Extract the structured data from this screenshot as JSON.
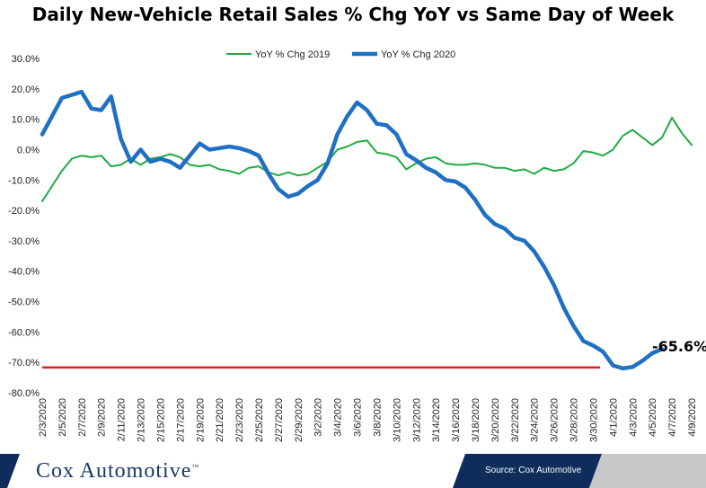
{
  "chart_data": {
    "type": "line",
    "title": "Daily New-Vehicle Retail Sales % Chg YoY vs Same Day of Week",
    "xlabel": "",
    "ylabel": "",
    "ylim": [
      -80,
      30
    ],
    "y_ticks": [
      "30.0%",
      "20.0%",
      "10.0%",
      "0.0%",
      "-10.0%",
      "-20.0%",
      "-30.0%",
      "-40.0%",
      "-50.0%",
      "-60.0%",
      "-70.0%",
      "-80.0%"
    ],
    "x_start": "2/3/2020",
    "x_ticks": [
      "2/3/2020",
      "2/5/2020",
      "2/7/2020",
      "2/9/2020",
      "2/11/2020",
      "2/13/2020",
      "2/15/2020",
      "2/17/2020",
      "2/19/2020",
      "2/21/2020",
      "2/23/2020",
      "2/25/2020",
      "2/27/2020",
      "2/29/2020",
      "3/2/2020",
      "3/4/2020",
      "3/6/2020",
      "3/8/2020",
      "3/10/2020",
      "3/12/2020",
      "3/14/2020",
      "3/16/2020",
      "3/18/2020",
      "3/20/2020",
      "3/22/2020",
      "3/24/2020",
      "3/26/2020",
      "3/28/2020",
      "3/30/2020",
      "4/1/2020",
      "4/3/2020",
      "4/5/2020",
      "4/7/2020",
      "4/9/2020"
    ],
    "legend_position": "top-center",
    "grid": false,
    "series": [
      {
        "name": "YoY % Chg 2019",
        "color": "#22aa44",
        "values": [
          -17,
          -12,
          -7,
          -3,
          -2,
          -2.5,
          -2,
          -5.5,
          -5,
          -3,
          -5,
          -3,
          -2.5,
          -1.5,
          -2.5,
          -5,
          -5.5,
          -5,
          -6.5,
          -7,
          -8,
          -6,
          -5.5,
          -7.5,
          -8.5,
          -7.5,
          -8.5,
          -8,
          -6,
          -4,
          0,
          1,
          2.5,
          3,
          -1,
          -1.5,
          -2.5,
          -6.5,
          -4.5,
          -3,
          -2.5,
          -4.5,
          -5,
          -5,
          -4.5,
          -5,
          -6,
          -6,
          -7,
          -6.5,
          -8,
          -6,
          -7,
          -6.5,
          -4.5,
          -0.5,
          -1,
          -2,
          0,
          4.5,
          6.5,
          4,
          1.5,
          4,
          10.5,
          5.5,
          1.5
        ]
      },
      {
        "name": "YoY % Chg 2020",
        "color": "#1f6fc5",
        "values": [
          5,
          11,
          17,
          18,
          19,
          13.5,
          13,
          17.5,
          3.5,
          -4,
          0,
          -4,
          -3,
          -4,
          -6,
          -2,
          2,
          0,
          0.5,
          1,
          0.5,
          -0.5,
          -2,
          -8,
          -13,
          -15.5,
          -14.5,
          -12,
          -10,
          -4.5,
          5,
          11,
          15.5,
          13,
          8.5,
          8,
          5,
          -1.5,
          -3.5,
          -6,
          -7.5,
          -10,
          -10.5,
          -12.5,
          -16.5,
          -21.5,
          -24.5,
          -26,
          -29,
          -30,
          -33.5,
          -38.5,
          -44.5,
          -52,
          -58,
          -63,
          -64.5,
          -66.5,
          -71,
          -72,
          -71.5,
          -69.5,
          -67,
          -65.6
        ]
      }
    ],
    "reference_line": {
      "value": -71.7,
      "color": "#e02020"
    },
    "end_label": "-65.6%"
  },
  "footer": {
    "brand": "Cox Automotive",
    "trademark": "™",
    "source": "Source: Cox Automotive"
  }
}
